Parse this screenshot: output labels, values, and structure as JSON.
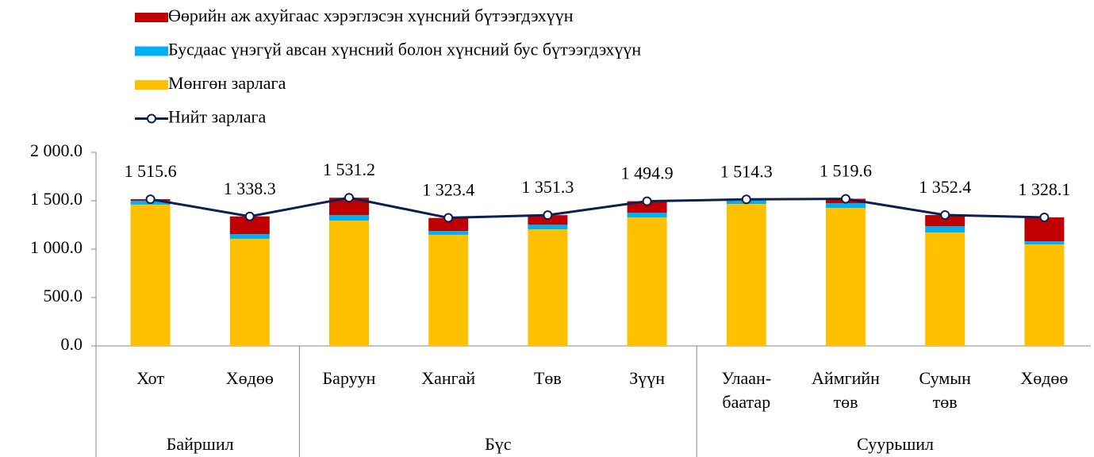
{
  "chart_data": {
    "type": "stacked_bar_line",
    "categories": [
      "Хот",
      "Хөдөө",
      "Баруун",
      "Хангай",
      "Төв",
      "Зүүн",
      "Улаан-\nбаатар",
      "Аймгийн\nтөв",
      "Сумын\nтөв",
      "Хөдөө"
    ],
    "groups": [
      {
        "name": "Байршил",
        "count": 2
      },
      {
        "name": "Бүс",
        "count": 4
      },
      {
        "name": "Суурьшил",
        "count": 4
      }
    ],
    "series": [
      {
        "name": "Өөрийн аж ахуйгаас хэрэглэсэн хүнсний бүтээгдэхүүн",
        "type": "bar",
        "color": "#c00000",
        "values": [
          16,
          182,
          179,
          134,
          97,
          118,
          6,
          45,
          114,
          246
        ]
      },
      {
        "name": "Бусдаас үнэгүй авсан хүнсний болон хүнсний бус бүтээгдэхүүн",
        "type": "bar",
        "color": "#00b0f0",
        "values": [
          40,
          49,
          57,
          40,
          49,
          49,
          41,
          49,
          66,
          33
        ]
      },
      {
        "name": "Мөнгөн зарлага",
        "type": "bar",
        "color": "#ffc000",
        "values": [
          1460,
          1107,
          1295,
          1148,
          1205,
          1328,
          1467,
          1426,
          1172,
          1049
        ]
      },
      {
        "name": "Нийт зарлага",
        "type": "line",
        "color": "#0d1f4f",
        "values": [
          1515.6,
          1338.3,
          1531.2,
          1323.4,
          1351.3,
          1494.9,
          1514.3,
          1519.6,
          1352.4,
          1328.1
        ],
        "value_labels": [
          "1 515.6",
          "1 338.3",
          "1 531.2",
          "1 323.4",
          "1 351.3",
          "1 494.9",
          "1 514.3",
          "1 519.6",
          "1 352.4",
          "1 328.1"
        ]
      }
    ],
    "ylim": [
      0,
      2000
    ],
    "yticks": [
      {
        "value": 0,
        "label": "0.0"
      },
      {
        "value": 500,
        "label": "500.0"
      },
      {
        "value": 1000,
        "label": "1 000.0"
      },
      {
        "value": 1500,
        "label": "1 500.0"
      },
      {
        "value": 2000,
        "label": "2 000.0"
      }
    ],
    "grid": false
  }
}
